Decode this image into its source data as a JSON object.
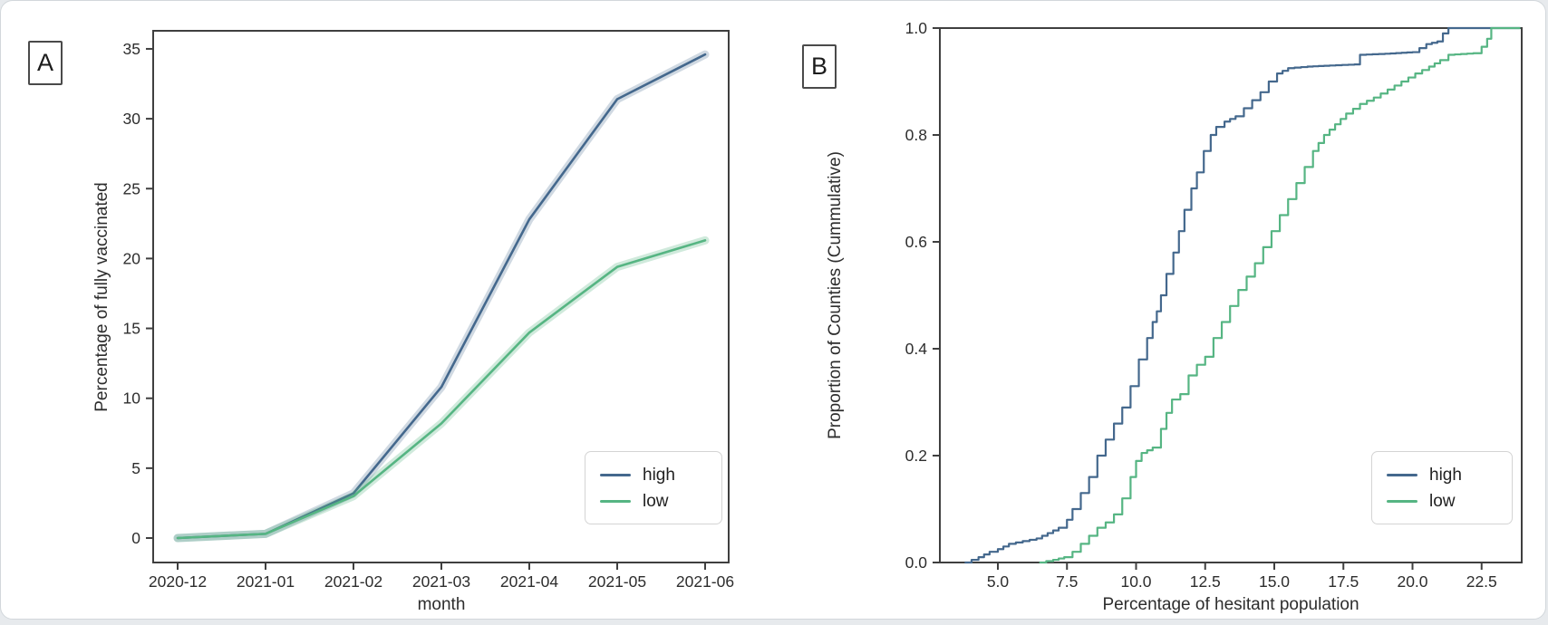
{
  "style": {
    "page_bg": "#e7eaed",
    "card_bg": "#ffffff",
    "card_border": "#d2d7db",
    "axis_color": "#3f3f3f",
    "tick_text_color": "#2d2d2d",
    "high_color": "#44688d",
    "low_color": "#56b583",
    "high_band_color": "rgba(68,104,141,0.25)",
    "low_band_color": "rgba(86,181,131,0.28)"
  },
  "chart_data": [
    {
      "type": "line",
      "panel_label": "A",
      "xlabel": "month",
      "ylabel": "Percentage of fully vaccinated",
      "categories": [
        "2020-12",
        "2021-01",
        "2021-02",
        "2021-03",
        "2021-04",
        "2021-05",
        "2021-06"
      ],
      "series": [
        {
          "name": "high",
          "color": "#44688d",
          "band_color": "rgba(68,104,141,0.25)",
          "values": [
            0.0,
            0.3,
            3.2,
            10.8,
            22.8,
            31.4,
            34.6
          ]
        },
        {
          "name": "low",
          "color": "#56b583",
          "band_color": "rgba(86,181,131,0.28)",
          "values": [
            0.0,
            0.3,
            3.0,
            8.2,
            14.7,
            19.4,
            21.3
          ]
        }
      ],
      "yticks": [
        [
          0,
          "0"
        ],
        [
          5,
          "5"
        ],
        [
          10,
          "10"
        ],
        [
          15,
          "15"
        ],
        [
          20,
          "20"
        ],
        [
          25,
          "25"
        ],
        [
          30,
          "30"
        ],
        [
          35,
          "35"
        ]
      ],
      "ylim": [
        -1.75,
        36.3
      ],
      "grid": false,
      "confidence_band": true,
      "legend_position": "lower right",
      "legend_entries": [
        "high",
        "low"
      ]
    },
    {
      "type": "line",
      "subtype": "ecdf-step",
      "panel_label": "B",
      "xlabel": "Percentage of hesitant population",
      "ylabel": "Proportion of Counties (Cummulative)",
      "xlim": [
        2.9,
        23.95
      ],
      "ylim": [
        0.0,
        1.0
      ],
      "xticks": [
        [
          5,
          "5.0"
        ],
        [
          7.5,
          "7.5"
        ],
        [
          10,
          "10.0"
        ],
        [
          12.5,
          "12.5"
        ],
        [
          15,
          "15.0"
        ],
        [
          17.5,
          "17.5"
        ],
        [
          20,
          "20.0"
        ],
        [
          22.5,
          "22.5"
        ]
      ],
      "yticks": [
        [
          0,
          "0.0"
        ],
        [
          0.2,
          "0.2"
        ],
        [
          0.4,
          "0.4"
        ],
        [
          0.6,
          "0.6"
        ],
        [
          0.8,
          "0.8"
        ],
        [
          1,
          "1.0"
        ]
      ],
      "grid": false,
      "legend_position": "lower right",
      "legend_entries": [
        "high",
        "low"
      ],
      "series": [
        {
          "name": "high",
          "color": "#44688d",
          "points": [
            [
              3.8,
              0.0
            ],
            [
              4.3,
              0.01
            ],
            [
              4.7,
              0.02
            ],
            [
              5.0,
              0.025
            ],
            [
              5.4,
              0.035
            ],
            [
              5.9,
              0.04
            ],
            [
              6.4,
              0.045
            ],
            [
              6.8,
              0.055
            ],
            [
              7.2,
              0.065
            ],
            [
              7.5,
              0.08
            ],
            [
              7.7,
              0.1
            ],
            [
              8.0,
              0.13
            ],
            [
              8.3,
              0.16
            ],
            [
              8.6,
              0.2
            ],
            [
              8.9,
              0.23
            ],
            [
              9.2,
              0.26
            ],
            [
              9.5,
              0.29
            ],
            [
              9.8,
              0.33
            ],
            [
              10.1,
              0.38
            ],
            [
              10.4,
              0.42
            ],
            [
              10.6,
              0.45
            ],
            [
              10.75,
              0.47
            ],
            [
              10.9,
              0.5
            ],
            [
              11.1,
              0.54
            ],
            [
              11.35,
              0.58
            ],
            [
              11.55,
              0.62
            ],
            [
              11.75,
              0.66
            ],
            [
              12.0,
              0.7
            ],
            [
              12.2,
              0.73
            ],
            [
              12.45,
              0.77
            ],
            [
              12.7,
              0.8
            ],
            [
              12.9,
              0.815
            ],
            [
              13.2,
              0.825
            ],
            [
              13.6,
              0.835
            ],
            [
              13.9,
              0.85
            ],
            [
              14.2,
              0.865
            ],
            [
              14.5,
              0.88
            ],
            [
              14.8,
              0.9
            ],
            [
              15.1,
              0.915
            ],
            [
              15.5,
              0.925
            ],
            [
              16.2,
              0.928
            ],
            [
              17.0,
              0.93
            ],
            [
              17.9,
              0.932
            ],
            [
              18.1,
              0.95
            ],
            [
              19.0,
              0.952
            ],
            [
              20.0,
              0.955
            ],
            [
              20.5,
              0.97
            ],
            [
              20.9,
              0.975
            ],
            [
              21.1,
              0.99
            ],
            [
              21.3,
              1.0
            ],
            [
              23.9,
              1.0
            ]
          ]
        },
        {
          "name": "low",
          "color": "#56b583",
          "points": [
            [
              6.5,
              0.0
            ],
            [
              7.0,
              0.005
            ],
            [
              7.4,
              0.01
            ],
            [
              7.7,
              0.02
            ],
            [
              8.0,
              0.035
            ],
            [
              8.3,
              0.05
            ],
            [
              8.6,
              0.065
            ],
            [
              8.9,
              0.075
            ],
            [
              9.2,
              0.09
            ],
            [
              9.5,
              0.12
            ],
            [
              9.8,
              0.16
            ],
            [
              10.0,
              0.19
            ],
            [
              10.2,
              0.205
            ],
            [
              10.6,
              0.215
            ],
            [
              10.9,
              0.25
            ],
            [
              11.1,
              0.28
            ],
            [
              11.3,
              0.305
            ],
            [
              11.6,
              0.315
            ],
            [
              11.9,
              0.35
            ],
            [
              12.2,
              0.37
            ],
            [
              12.5,
              0.385
            ],
            [
              12.8,
              0.42
            ],
            [
              13.1,
              0.45
            ],
            [
              13.4,
              0.48
            ],
            [
              13.7,
              0.51
            ],
            [
              14.0,
              0.535
            ],
            [
              14.3,
              0.56
            ],
            [
              14.6,
              0.59
            ],
            [
              14.9,
              0.62
            ],
            [
              15.2,
              0.65
            ],
            [
              15.5,
              0.68
            ],
            [
              15.8,
              0.71
            ],
            [
              16.1,
              0.74
            ],
            [
              16.4,
              0.77
            ],
            [
              16.8,
              0.8
            ],
            [
              17.2,
              0.82
            ],
            [
              17.6,
              0.84
            ],
            [
              18.1,
              0.858
            ],
            [
              18.6,
              0.87
            ],
            [
              19.1,
              0.885
            ],
            [
              19.6,
              0.9
            ],
            [
              20.1,
              0.915
            ],
            [
              20.6,
              0.928
            ],
            [
              21.0,
              0.94
            ],
            [
              21.3,
              0.95
            ],
            [
              22.2,
              0.953
            ],
            [
              22.5,
              0.965
            ],
            [
              22.7,
              0.98
            ],
            [
              22.85,
              1.0
            ],
            [
              23.9,
              1.0
            ]
          ]
        }
      ]
    }
  ]
}
